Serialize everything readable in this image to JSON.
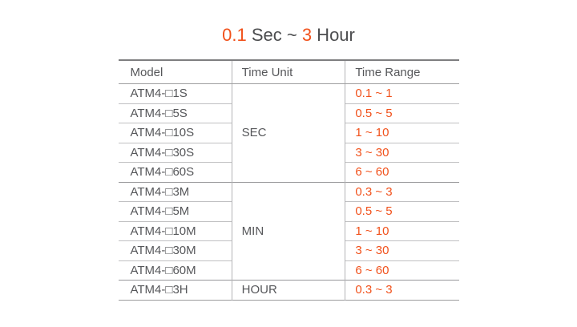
{
  "title": {
    "seg1": "0.1",
    "seg2": " Sec ~ ",
    "seg3": "3",
    "seg4": " Hour"
  },
  "colors": {
    "accent_orange": "#f1511b",
    "text_gray": "#56575a",
    "border_strong": "#7e7e80",
    "border_mid": "#9b9b9d",
    "border_light": "#c0c0c2",
    "background": "#ffffff"
  },
  "table": {
    "headers": {
      "model": "Model",
      "time_unit": "Time Unit",
      "time_range": "Time Range"
    },
    "rows": [
      {
        "model": "ATM4-□1S",
        "unit": "SEC",
        "range": "0.1 ~ 1"
      },
      {
        "model": "ATM4-□5S",
        "range": "0.5 ~ 5"
      },
      {
        "model": "ATM4-□10S",
        "range": "1 ~ 10"
      },
      {
        "model": "ATM4-□30S",
        "range": "3 ~ 30"
      },
      {
        "model": "ATM4-□60S",
        "range": "6 ~ 60"
      },
      {
        "model": "ATM4-□3M",
        "unit": "MIN",
        "range": "0.3 ~ 3"
      },
      {
        "model": "ATM4-□5M",
        "range": "0.5 ~ 5"
      },
      {
        "model": "ATM4-□10M",
        "range": "1 ~ 10"
      },
      {
        "model": "ATM4-□30M",
        "range": "3 ~ 30"
      },
      {
        "model": "ATM4-□60M",
        "range": "6 ~ 60"
      },
      {
        "model": "ATM4-□3H",
        "unit": "HOUR",
        "range": "0.3 ~ 3"
      }
    ]
  }
}
